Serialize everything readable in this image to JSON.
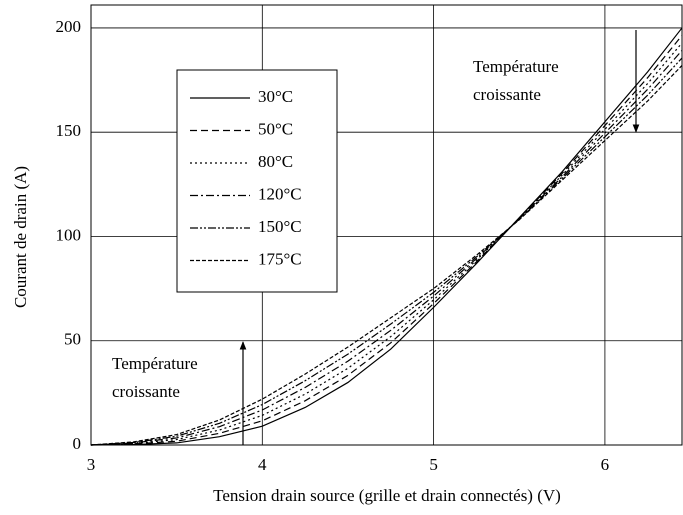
{
  "chart_data": {
    "type": "line",
    "xlabel": "Tension drain source (grille et drain connectés) (V)",
    "ylabel": "Courant de drain (A)",
    "annotations": [
      [
        "Température",
        "croissante"
      ],
      [
        "Température",
        "croissante"
      ]
    ],
    "x": [
      3,
      3.25,
      3.5,
      3.75,
      4,
      4.25,
      4.5,
      4.75,
      5,
      5.25,
      5.5,
      5.75,
      6,
      6.25,
      6.45
    ],
    "series": [
      {
        "name": "30°C",
        "color": "#000000",
        "dash": "",
        "values": [
          0,
          0.2,
          1,
          4,
          9,
          18,
          30,
          46,
          66,
          87,
          109,
          131,
          155,
          179,
          200
        ]
      },
      {
        "name": "50°C",
        "color": "#000000",
        "dash": "7 4",
        "values": [
          0,
          0.5,
          1.8,
          5.6,
          11.6,
          21.2,
          33.4,
          49,
          67.8,
          87.8,
          108.8,
          130.2,
          153.2,
          176.2,
          196.4
        ]
      },
      {
        "name": "80°C",
        "color": "#000000",
        "dash": "2 3",
        "values": [
          0,
          0.7,
          2.6,
          7.2,
          14.2,
          24.4,
          36.8,
          52,
          69.6,
          88.6,
          108.6,
          129.4,
          151.4,
          173.4,
          192.8
        ]
      },
      {
        "name": "120°C",
        "color": "#000000",
        "dash": "8 3 2 3",
        "values": [
          0,
          1,
          3.4,
          8.8,
          16.8,
          27.6,
          40.2,
          55,
          71.4,
          89.4,
          108.4,
          128.6,
          149.6,
          170.6,
          189.2
        ]
      },
      {
        "name": "150°C",
        "color": "#000000",
        "dash": "8 2 2 2 2 2",
        "values": [
          0,
          1.2,
          4.2,
          10.4,
          19.4,
          30.8,
          43.6,
          58,
          73.2,
          90.2,
          108.2,
          127.8,
          147.8,
          167.8,
          185.6
        ]
      },
      {
        "name": "175°C",
        "color": "#000000",
        "dash": "4 2",
        "values": [
          0,
          1.5,
          5,
          12,
          22,
          34,
          47,
          61,
          75,
          91,
          108,
          127,
          146,
          165,
          182
        ]
      }
    ],
    "xlim": [
      3,
      6.45
    ],
    "xticks": [
      3,
      4,
      5,
      6
    ],
    "ylim": [
      0,
      211
    ],
    "yticks": [
      0,
      50,
      100,
      150,
      200
    ],
    "grid": true
  }
}
